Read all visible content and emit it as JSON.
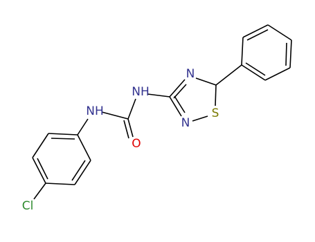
{
  "atoms": [
    "Cl",
    "NH",
    "O",
    "NH",
    "N",
    "N",
    "S"
  ]
}
